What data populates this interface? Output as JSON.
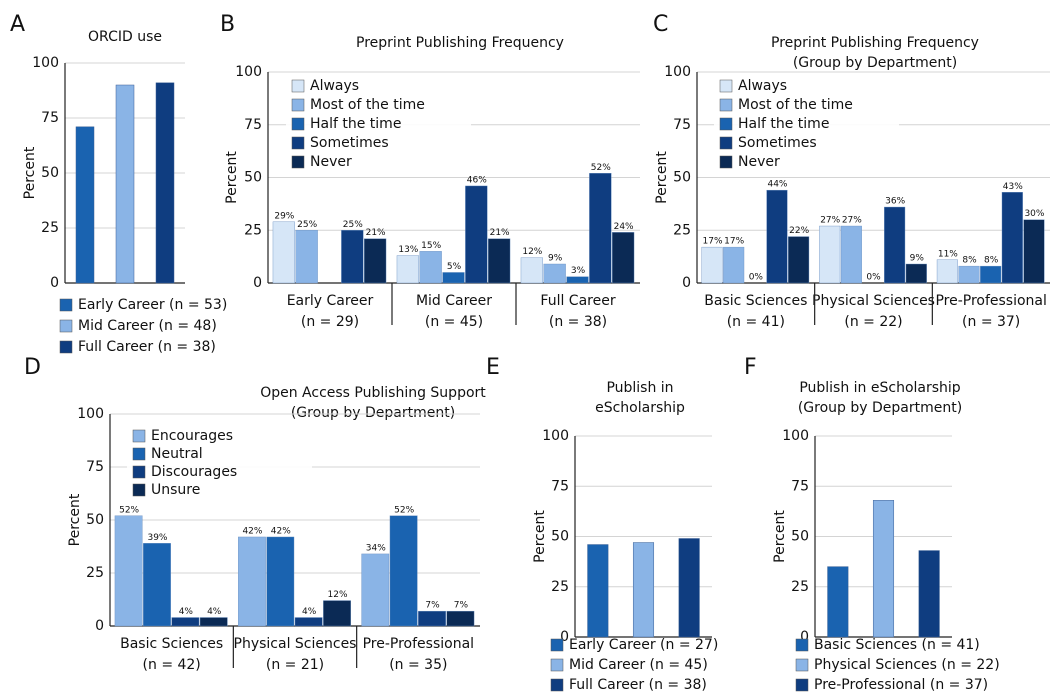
{
  "chart_data": [
    {
      "type": "bar",
      "panel": "A",
      "title": [
        "ORCID use"
      ],
      "ylabel": "Percent",
      "categories": [
        "Early Career (n = 53)",
        "Mid Career (n = 48)",
        "Full Career (n = 38)"
      ],
      "values": [
        71,
        90,
        91
      ],
      "colors": [
        "#1a63b0",
        "#8ab4e6",
        "#0f3d80"
      ],
      "ylim": [
        0,
        100
      ],
      "yticks": [
        0,
        25,
        50,
        75,
        100
      ],
      "grid": true
    },
    {
      "type": "bar",
      "panel": "B",
      "title": [
        "Preprint Publishing Frequency"
      ],
      "ylabel": "Percent",
      "categories": [
        [
          "Early Career",
          "(n = 29)"
        ],
        [
          "Mid Career",
          "(n = 45)"
        ],
        [
          "Full Career",
          "(n = 38)"
        ]
      ],
      "series": [
        {
          "name": "Always",
          "color": "#d6e6f7",
          "values": [
            29,
            13,
            12
          ],
          "value_labels": [
            "29%",
            "13%",
            "12%"
          ]
        },
        {
          "name": "Most of the time",
          "color": "#8ab4e6",
          "values": [
            25,
            15,
            9
          ],
          "value_labels": [
            "25%",
            "15%",
            "9%"
          ]
        },
        {
          "name": "Half the time",
          "color": "#1a63b0",
          "values": [
            null,
            5,
            3
          ],
          "value_labels": [
            null,
            "5%",
            "3%"
          ]
        },
        {
          "name": "Sometimes",
          "color": "#0f3d80",
          "values": [
            25,
            46,
            52
          ],
          "value_labels": [
            "25%",
            "46%",
            "52%"
          ]
        },
        {
          "name": "Never",
          "color": "#0b2a55",
          "values": [
            21,
            21,
            24
          ],
          "value_labels": [
            "21%",
            "21%",
            "24%"
          ]
        }
      ],
      "ylim": [
        0,
        100
      ],
      "yticks": [
        0,
        25,
        50,
        75,
        100
      ],
      "grid": true
    },
    {
      "type": "bar",
      "panel": "C",
      "title": [
        "Preprint Publishing Frequency",
        "(Group by Department)"
      ],
      "ylabel": "Percent",
      "categories": [
        [
          "Basic Sciences",
          "(n = 41)"
        ],
        [
          "Physical Sciences",
          "(n = 22)"
        ],
        [
          "Pre-Professional",
          "(n = 37)"
        ]
      ],
      "series": [
        {
          "name": "Always",
          "color": "#d6e6f7",
          "values": [
            17,
            27,
            11
          ],
          "value_labels": [
            "17%",
            "27%",
            "11%"
          ]
        },
        {
          "name": "Most of the time",
          "color": "#8ab4e6",
          "values": [
            17,
            27,
            8
          ],
          "value_labels": [
            "17%",
            "27%",
            "8%"
          ]
        },
        {
          "name": "Half the time",
          "color": "#1a63b0",
          "values": [
            0,
            0,
            8
          ],
          "value_labels": [
            "0%",
            "0%",
            "8%"
          ]
        },
        {
          "name": "Sometimes",
          "color": "#0f3d80",
          "values": [
            44,
            36,
            43
          ],
          "value_labels": [
            "44%",
            "36%",
            "43%"
          ]
        },
        {
          "name": "Never",
          "color": "#0b2a55",
          "values": [
            22,
            9,
            30
          ],
          "value_labels": [
            "22%",
            "9%",
            "30%"
          ]
        }
      ],
      "ylim": [
        0,
        100
      ],
      "yticks": [
        0,
        25,
        50,
        75,
        100
      ],
      "grid": true
    },
    {
      "type": "bar",
      "panel": "D",
      "title": [
        "Open Access Publishing Support",
        "(Group by Department)"
      ],
      "ylabel": "Percent",
      "categories": [
        [
          "Basic Sciences",
          "(n = 42)"
        ],
        [
          "Physical Sciences",
          "(n = 21)"
        ],
        [
          "Pre-Professional",
          "(n = 35)"
        ]
      ],
      "series": [
        {
          "name": "Encourages",
          "color": "#8ab4e6",
          "values": [
            52,
            42,
            34
          ],
          "value_labels": [
            "52%",
            "42%",
            "34%"
          ]
        },
        {
          "name": "Neutral",
          "color": "#1a63b0",
          "values": [
            39,
            42,
            52
          ],
          "value_labels": [
            "39%",
            "42%",
            "52%"
          ]
        },
        {
          "name": "Discourages",
          "color": "#0f3d80",
          "values": [
            4,
            4,
            7
          ],
          "value_labels": [
            "4%",
            "4%",
            "7%"
          ]
        },
        {
          "name": "Unsure",
          "color": "#0b2a55",
          "values": [
            4,
            12,
            7
          ],
          "value_labels": [
            "4%",
            "12%",
            "7%"
          ]
        }
      ],
      "ylim": [
        0,
        100
      ],
      "yticks": [
        0,
        25,
        50,
        75,
        100
      ],
      "grid": true
    },
    {
      "type": "bar",
      "panel": "E",
      "title": [
        "Publish in",
        "eScholarship"
      ],
      "ylabel": "Percent",
      "categories": [
        "Early Career (n = 27)",
        "Mid Career (n = 45)",
        "Full Career (n = 38)"
      ],
      "values": [
        46,
        47,
        49
      ],
      "colors": [
        "#1a63b0",
        "#8ab4e6",
        "#0f3d80"
      ],
      "ylim": [
        0,
        100
      ],
      "yticks": [
        0,
        25,
        50,
        75,
        100
      ],
      "grid": true
    },
    {
      "type": "bar",
      "panel": "F",
      "title": [
        "Publish in eScholarship",
        "(Group by Department)"
      ],
      "ylabel": "Percent",
      "categories": [
        "Basic Sciences (n = 41)",
        "Physical Sciences (n = 22)",
        "Pre-Professional (n = 37)"
      ],
      "values": [
        35,
        68,
        43
      ],
      "colors": [
        "#1a63b0",
        "#8ab4e6",
        "#0f3d80"
      ],
      "ylim": [
        0,
        100
      ],
      "yticks": [
        0,
        25,
        50,
        75,
        100
      ],
      "grid": true
    }
  ]
}
